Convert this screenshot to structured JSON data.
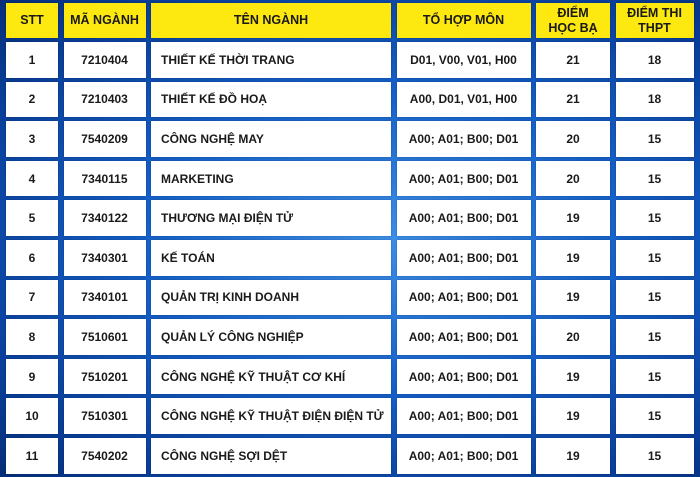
{
  "header": {
    "stt": "STT",
    "code": "MÃ NGÀNH",
    "name": "TÊN NGÀNH",
    "combo": "TỔ HỢP MÔN",
    "transcript": "ĐIỂM\nHỌC BẠ",
    "exam": "ĐIỂM THI\nTHPT"
  },
  "colors": {
    "header_bg": "#fde910",
    "background": "#1560c8"
  },
  "rows": [
    {
      "stt": "1",
      "code": "7210404",
      "name": "THIẾT KẾ THỜI TRANG",
      "combo": "D01, V00, V01, H00",
      "transcript": "21",
      "exam": "18"
    },
    {
      "stt": "2",
      "code": "7210403",
      "name": "THIẾT KẾ ĐỒ HOẠ",
      "combo": "A00, D01, V01, H00",
      "transcript": "21",
      "exam": "18"
    },
    {
      "stt": "3",
      "code": "7540209",
      "name": "CÔNG NGHỆ MAY",
      "combo": "A00; A01; B00; D01",
      "transcript": "20",
      "exam": "15"
    },
    {
      "stt": "4",
      "code": "7340115",
      "name": "MARKETING",
      "combo": "A00; A01; B00; D01",
      "transcript": "20",
      "exam": "15"
    },
    {
      "stt": "5",
      "code": "7340122",
      "name": "THƯƠNG MẠI ĐIỆN TỬ",
      "combo": "A00; A01; B00; D01",
      "transcript": "19",
      "exam": "15"
    },
    {
      "stt": "6",
      "code": "7340301",
      "name": "KẾ TOÁN",
      "combo": "A00; A01; B00; D01",
      "transcript": "19",
      "exam": "15"
    },
    {
      "stt": "7",
      "code": "7340101",
      "name": "QUẢN TRỊ KINH DOANH",
      "combo": "A00; A01; B00; D01",
      "transcript": "19",
      "exam": "15"
    },
    {
      "stt": "8",
      "code": "7510601",
      "name": "QUẢN LÝ CÔNG NGHIỆP",
      "combo": "A00; A01; B00; D01",
      "transcript": "20",
      "exam": "15"
    },
    {
      "stt": "9",
      "code": "7510201",
      "name": "CÔNG NGHỆ KỸ THUẬT CƠ KHÍ",
      "combo": "A00; A01; B00; D01",
      "transcript": "19",
      "exam": "15"
    },
    {
      "stt": "10",
      "code": "7510301",
      "name": "CÔNG NGHỆ KỸ THUẬT ĐIỆN ĐIỆN TỬ",
      "combo": "A00; A01; B00; D01",
      "transcript": "19",
      "exam": "15"
    },
    {
      "stt": "11",
      "code": "7540202",
      "name": "CÔNG NGHỆ SỢI DỆT",
      "combo": "A00; A01; B00; D01",
      "transcript": "19",
      "exam": "15"
    }
  ]
}
